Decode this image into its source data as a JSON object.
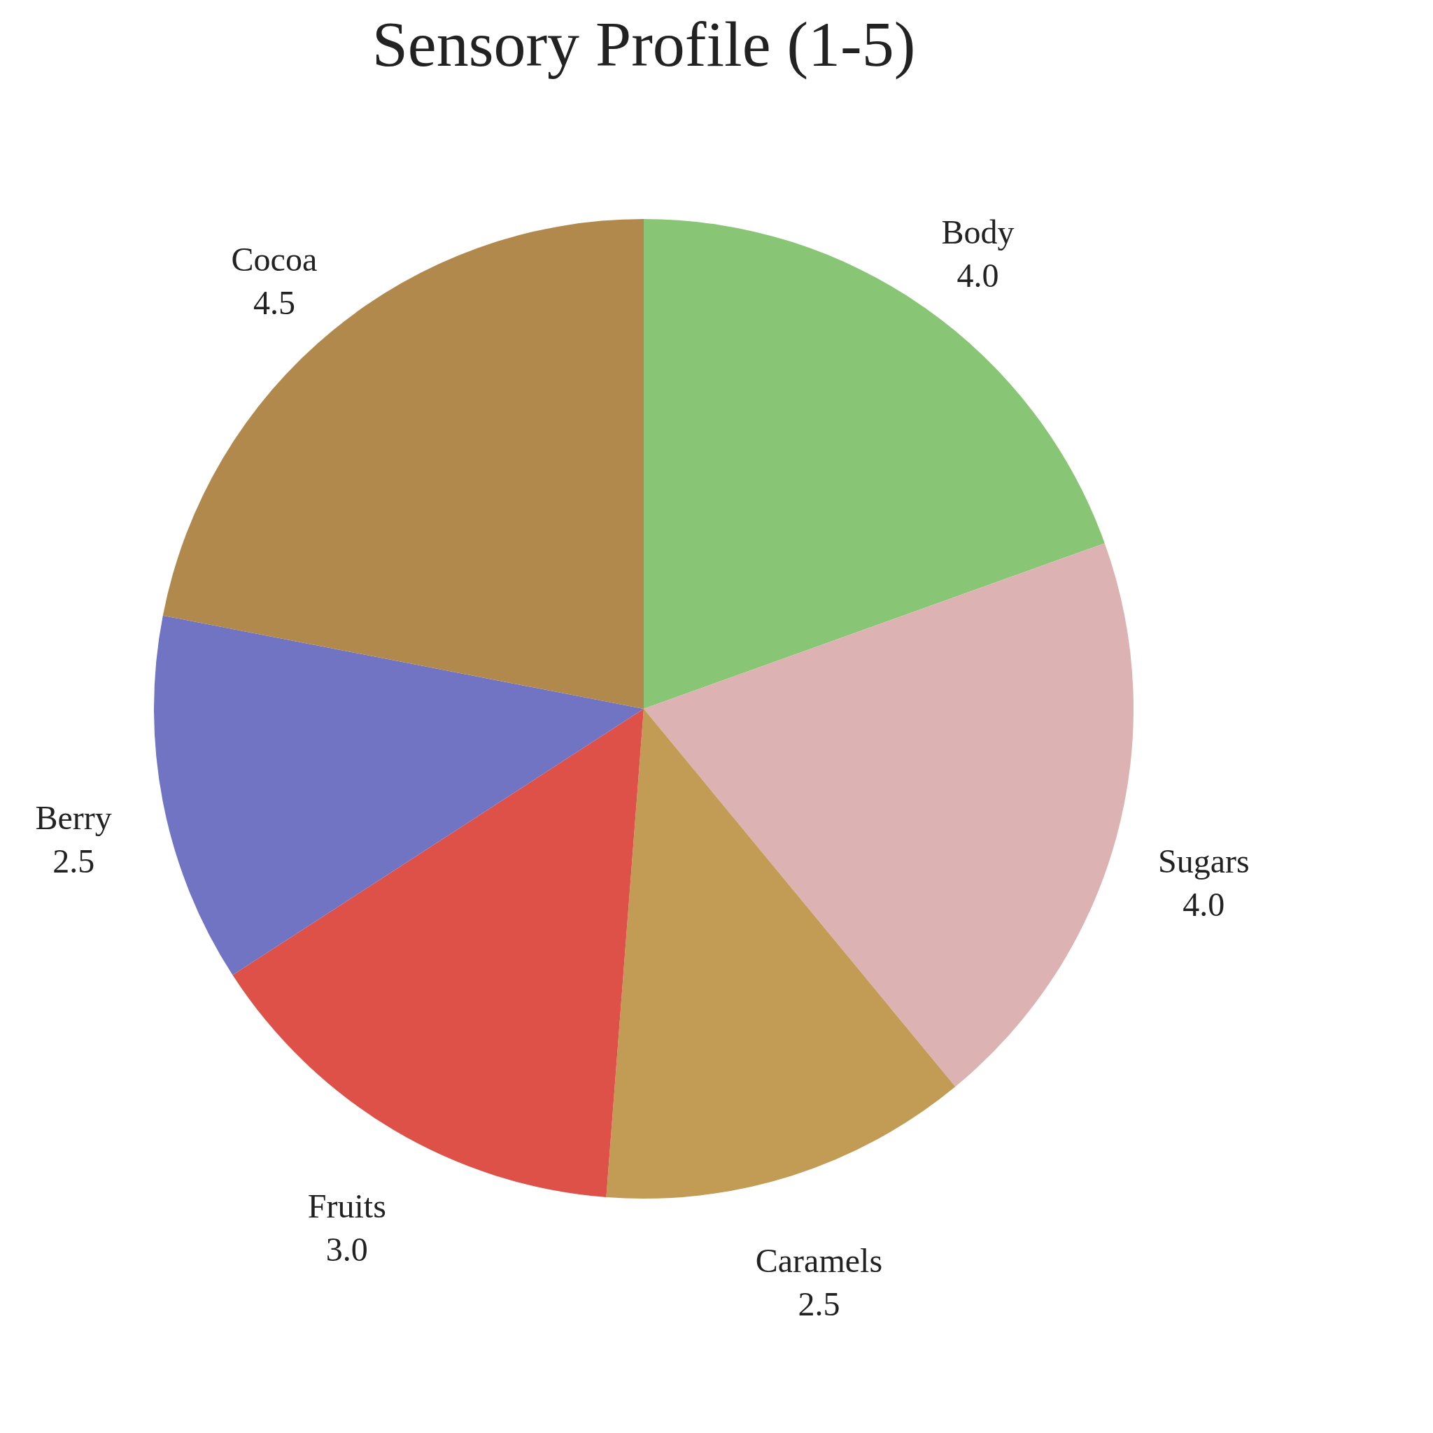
{
  "chart_data": {
    "type": "pie",
    "title": "Sensory Profile (1-5)",
    "categories": [
      "Body",
      "Sugars",
      "Caramels",
      "Fruits",
      "Berry",
      "Cocoa"
    ],
    "values": [
      4.0,
      4.0,
      2.5,
      3.0,
      2.5,
      4.5
    ],
    "colors": [
      "#88c574",
      "#dcb2b3",
      "#c29b54",
      "#de5148",
      "#7074c2",
      "#b1894d"
    ],
    "value_labels": [
      "4.0",
      "4.0",
      "2.5",
      "3.0",
      "2.5",
      "4.5"
    ],
    "legend": false
  }
}
